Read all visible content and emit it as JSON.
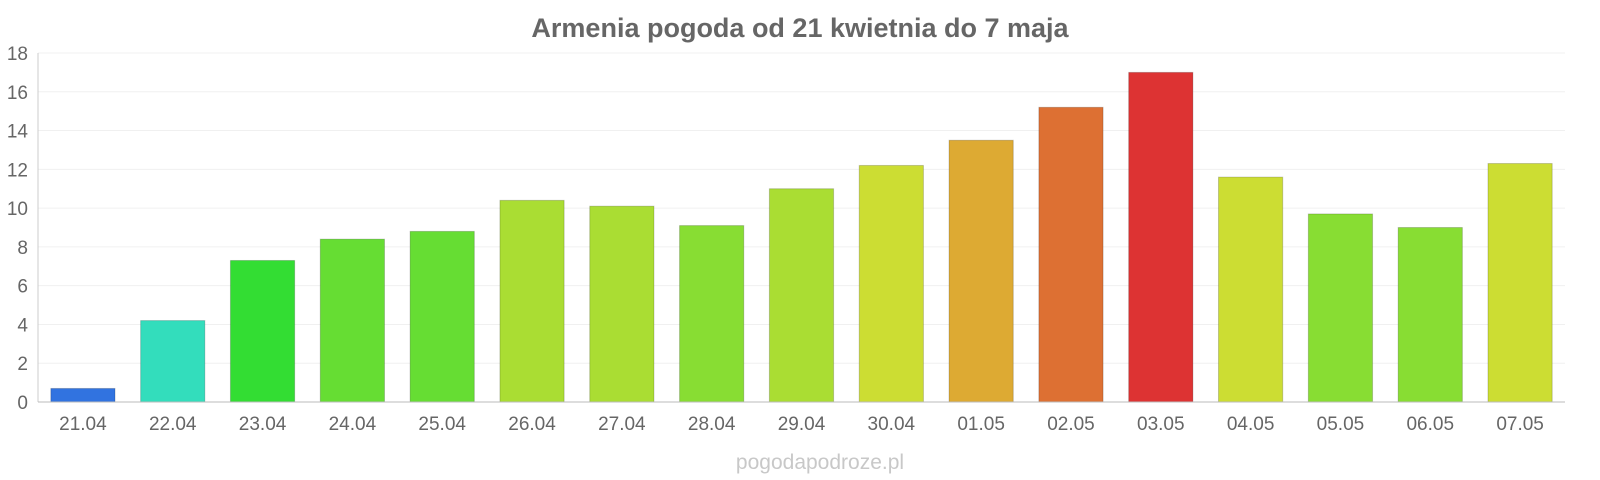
{
  "chart_data": {
    "type": "bar",
    "title": "Armenia pogoda od 21 kwietnia do 7 maja",
    "xlabel": "",
    "ylabel": "",
    "categories": [
      "21.04",
      "22.04",
      "23.04",
      "24.04",
      "25.04",
      "26.04",
      "27.04",
      "28.04",
      "29.04",
      "30.04",
      "01.05",
      "02.05",
      "03.05",
      "04.05",
      "05.05",
      "06.05",
      "07.05"
    ],
    "values": [
      0.7,
      4.2,
      7.3,
      8.4,
      8.8,
      10.4,
      10.1,
      9.1,
      11.0,
      12.2,
      13.5,
      15.2,
      17.0,
      11.6,
      9.7,
      9.0,
      12.3
    ],
    "colors": [
      "#3173e0",
      "#33ddbc",
      "#33dd33",
      "#66dd33",
      "#66dd33",
      "#aadd33",
      "#aadd33",
      "#88dd33",
      "#aadd33",
      "#ccdd33",
      "#ddaa33",
      "#dd7033",
      "#dd3333",
      "#ccdd33",
      "#88dd33",
      "#88dd33",
      "#ccdd33"
    ],
    "ylim": [
      0,
      18
    ],
    "yticks": [
      0,
      2,
      4,
      6,
      8,
      10,
      12,
      14,
      16,
      18
    ],
    "grid": true,
    "legend": "none"
  },
  "watermark": "pogodapodroze.pl"
}
